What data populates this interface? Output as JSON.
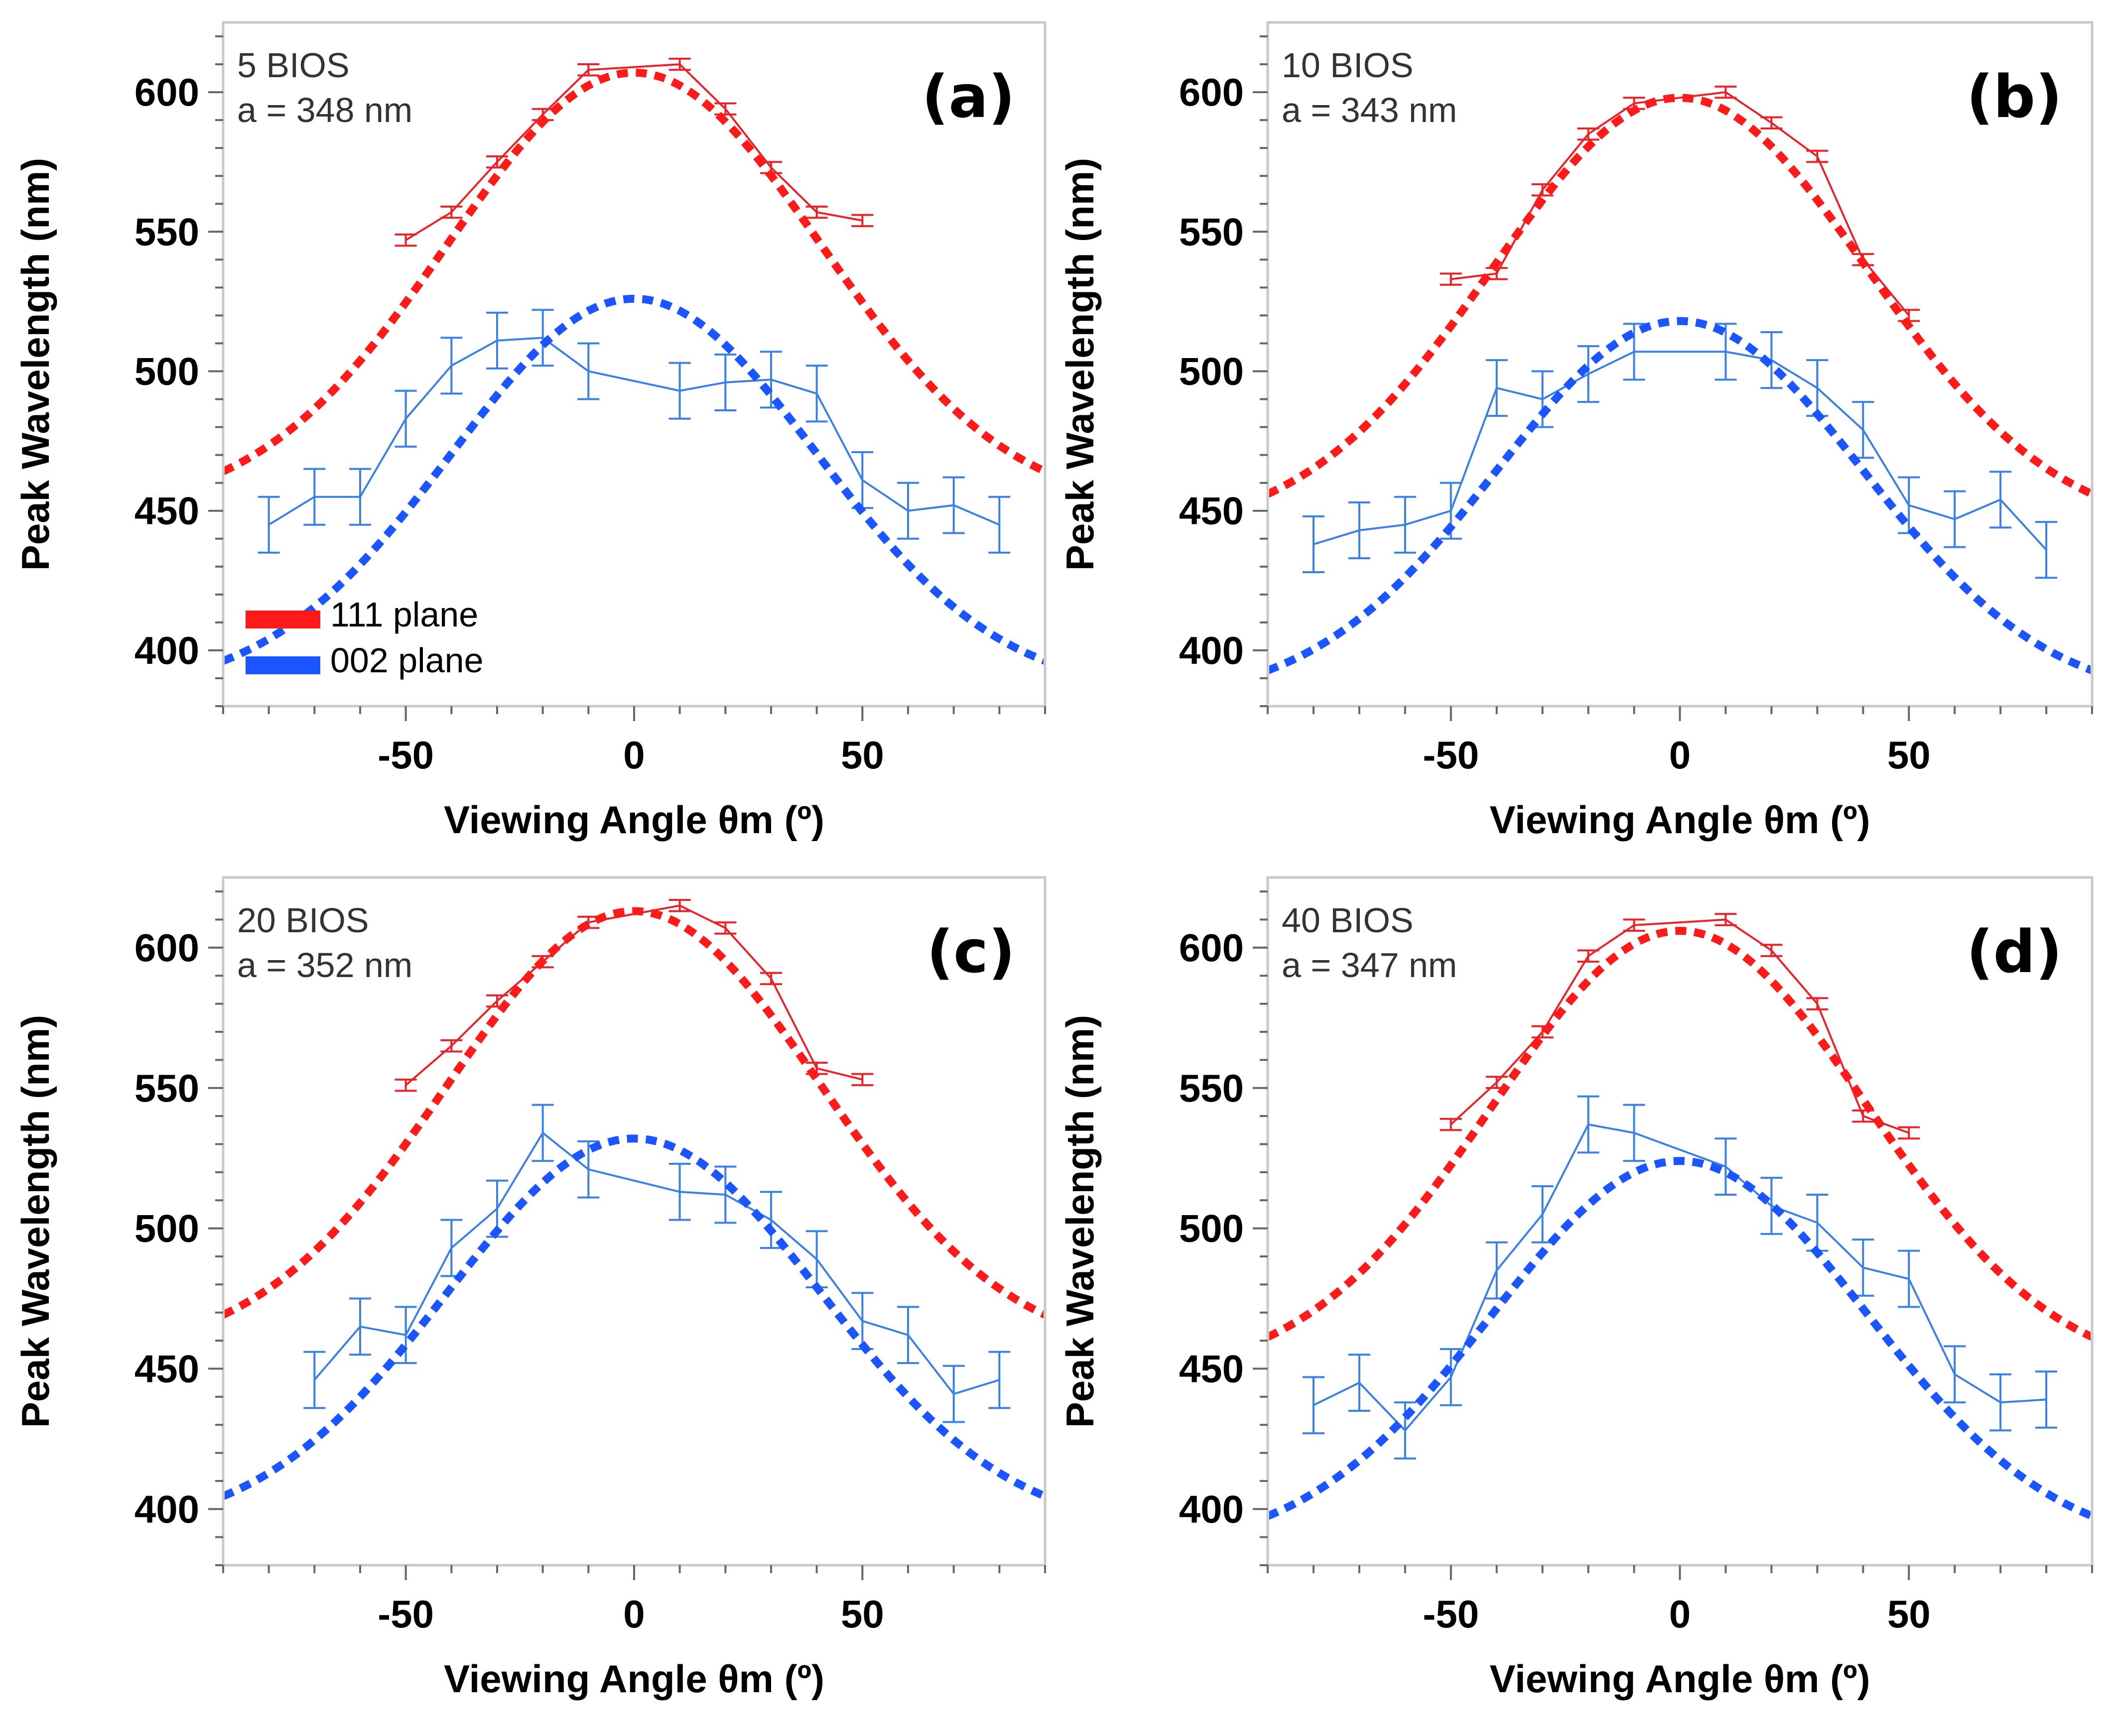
{
  "chart_data": [
    {
      "type": "line",
      "panel_label": "(a)",
      "annotations": [
        "5 BIOS",
        "a = 348 nm"
      ],
      "xlabel": "Viewing Angle θm (º)",
      "ylabel": "Peak Wavelength (nm)",
      "xlim": [
        -90,
        90
      ],
      "ylim": [
        380,
        625
      ],
      "xticks": [
        -50,
        0,
        50
      ],
      "yticks": [
        400,
        450,
        500,
        550,
        600
      ],
      "legend": {
        "position": "bottom-left",
        "entries": [
          {
            "label": "111 plane",
            "color": "#ff1a1a"
          },
          {
            "label": "002 plane",
            "color": "#1a55ff"
          }
        ]
      },
      "series": [
        {
          "color": "#e8232a",
          "style": "solid-markers-errorbars",
          "x": [
            -50,
            -40,
            -30,
            -20,
            -10,
            10,
            20,
            30,
            40,
            50
          ],
          "y": [
            547,
            557,
            575,
            592,
            608,
            610,
            594,
            573,
            557,
            554
          ],
          "err": [
            2,
            2,
            2,
            2,
            2,
            2,
            2,
            2,
            2,
            2
          ]
        },
        {
          "color": "#ff1a1a",
          "style": "dashed-fit",
          "center": 0,
          "peak": 607,
          "base": 450,
          "sigma": 41
        },
        {
          "color": "#3a80e6",
          "style": "solid-markers-errorbars",
          "x": [
            -80,
            -70,
            -60,
            -50,
            -40,
            -30,
            -20,
            -10,
            10,
            20,
            30,
            40,
            50,
            60,
            70,
            80
          ],
          "y": [
            445,
            455,
            455,
            483,
            502,
            511,
            512,
            500,
            493,
            496,
            497,
            492,
            461,
            450,
            452,
            445
          ],
          "err": [
            10,
            10,
            10,
            10,
            10,
            10,
            10,
            10,
            10,
            10,
            10,
            10,
            10,
            10,
            10,
            10
          ]
        },
        {
          "color": "#1a55ff",
          "style": "dashed-fit",
          "center": 0,
          "peak": 526,
          "base": 385,
          "sigma": 40
        }
      ]
    },
    {
      "type": "line",
      "panel_label": "(b)",
      "annotations": [
        "10 BIOS",
        "a = 343 nm"
      ],
      "xlabel": "Viewing Angle θm (º)",
      "ylabel": "Peak Wavelength (nm)",
      "xlim": [
        -90,
        90
      ],
      "ylim": [
        380,
        625
      ],
      "xticks": [
        -50,
        0,
        50
      ],
      "yticks": [
        400,
        450,
        500,
        550,
        600
      ],
      "series": [
        {
          "color": "#e8232a",
          "style": "solid-markers-errorbars",
          "x": [
            -50,
            -40,
            -30,
            -20,
            -10,
            10,
            20,
            30,
            40,
            50
          ],
          "y": [
            533,
            535,
            565,
            585,
            596,
            600,
            589,
            577,
            540,
            520
          ],
          "err": [
            2,
            2,
            2,
            2,
            2,
            2,
            2,
            2,
            2,
            2
          ]
        },
        {
          "color": "#ff1a1a",
          "style": "dashed-fit",
          "center": 0,
          "peak": 598,
          "base": 442,
          "sigma": 41
        },
        {
          "color": "#3a80e6",
          "style": "solid-markers-errorbars",
          "x": [
            -80,
            -70,
            -60,
            -50,
            -40,
            -30,
            -20,
            -10,
            10,
            20,
            30,
            40,
            50,
            60,
            70,
            80
          ],
          "y": [
            438,
            443,
            445,
            450,
            494,
            490,
            499,
            507,
            507,
            504,
            494,
            479,
            452,
            447,
            454,
            436
          ],
          "err": [
            10,
            10,
            10,
            10,
            10,
            10,
            10,
            10,
            10,
            10,
            10,
            10,
            10,
            10,
            10,
            10
          ]
        },
        {
          "color": "#1a55ff",
          "style": "dashed-fit",
          "center": 0,
          "peak": 518,
          "base": 382,
          "sigma": 40
        }
      ]
    },
    {
      "type": "line",
      "panel_label": "(c)",
      "annotations": [
        "20 BIOS",
        "a = 352 nm"
      ],
      "xlabel": "Viewing Angle θm (º)",
      "ylabel": "Peak Wavelength (nm)",
      "xlim": [
        -90,
        90
      ],
      "ylim": [
        380,
        625
      ],
      "xticks": [
        -50,
        0,
        50
      ],
      "yticks": [
        400,
        450,
        500,
        550,
        600
      ],
      "series": [
        {
          "color": "#e8232a",
          "style": "solid-markers-errorbars",
          "x": [
            -50,
            -40,
            -30,
            -20,
            -10,
            10,
            20,
            30,
            40,
            50
          ],
          "y": [
            551,
            565,
            581,
            595,
            609,
            615,
            607,
            589,
            557,
            553
          ],
          "err": [
            2,
            2,
            2,
            2,
            2,
            2,
            2,
            2,
            2,
            2
          ]
        },
        {
          "color": "#ff1a1a",
          "style": "dashed-fit",
          "center": 0,
          "peak": 613,
          "base": 455,
          "sigma": 41
        },
        {
          "color": "#3a80e6",
          "style": "solid-markers-errorbars",
          "x": [
            -70,
            -60,
            -50,
            -40,
            -30,
            -20,
            -10,
            10,
            20,
            30,
            40,
            50,
            60,
            70,
            80
          ],
          "y": [
            446,
            465,
            462,
            493,
            507,
            534,
            521,
            513,
            512,
            503,
            489,
            467,
            462,
            441,
            446
          ],
          "err": [
            10,
            10,
            10,
            10,
            10,
            10,
            10,
            10,
            10,
            10,
            10,
            10,
            10,
            10,
            10
          ]
        },
        {
          "color": "#1a55ff",
          "style": "dashed-fit",
          "center": 0,
          "peak": 532,
          "base": 392,
          "sigma": 41
        }
      ]
    },
    {
      "type": "line",
      "panel_label": "(d)",
      "annotations": [
        "40 BIOS",
        "a = 347 nm"
      ],
      "xlabel": "Viewing Angle θm (º)",
      "ylabel": "Peak Wavelength (nm)",
      "xlim": [
        -90,
        90
      ],
      "ylim": [
        380,
        625
      ],
      "xticks": [
        -50,
        0,
        50
      ],
      "yticks": [
        400,
        450,
        500,
        550,
        600
      ],
      "series": [
        {
          "color": "#e8232a",
          "style": "solid-markers-errorbars",
          "x": [
            -50,
            -40,
            -30,
            -20,
            -10,
            10,
            20,
            30,
            40,
            50
          ],
          "y": [
            537,
            552,
            570,
            597,
            608,
            610,
            599,
            580,
            540,
            534
          ],
          "err": [
            2,
            2,
            2,
            2,
            2,
            2,
            2,
            2,
            2,
            2
          ]
        },
        {
          "color": "#ff1a1a",
          "style": "dashed-fit",
          "center": 0,
          "peak": 606,
          "base": 447,
          "sigma": 41
        },
        {
          "color": "#3a80e6",
          "style": "solid-markers-errorbars",
          "x": [
            -80,
            -70,
            -60,
            -50,
            -40,
            -30,
            -20,
            -10,
            10,
            20,
            30,
            40,
            50,
            60,
            70,
            80
          ],
          "y": [
            437,
            445,
            428,
            447,
            485,
            505,
            537,
            534,
            522,
            508,
            502,
            486,
            482,
            448,
            438,
            439
          ],
          "err": [
            10,
            10,
            10,
            10,
            10,
            10,
            10,
            10,
            10,
            10,
            10,
            10,
            10,
            10,
            10,
            10
          ]
        },
        {
          "color": "#1a55ff",
          "style": "dashed-fit",
          "center": 0,
          "peak": 524,
          "base": 385,
          "sigma": 41
        }
      ]
    }
  ]
}
